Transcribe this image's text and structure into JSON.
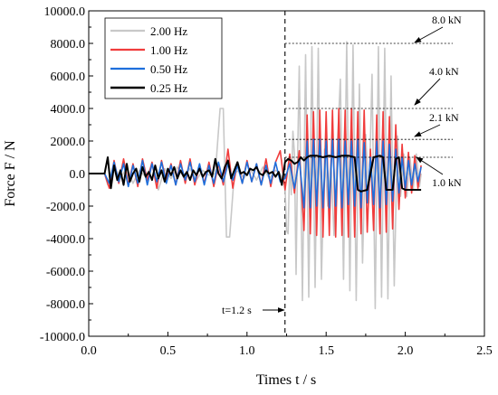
{
  "chart_data": {
    "type": "line",
    "xlabel": "Times t / s",
    "ylabel": "Force F / N",
    "xlim": [
      0,
      2.5
    ],
    "ylim": [
      -10000,
      10000
    ],
    "xticks": [
      0,
      0.5,
      1.0,
      1.5,
      2.0,
      2.5
    ],
    "xtick_labels": [
      "0.0",
      "0.5",
      "1.0",
      "1.5",
      "2.0",
      "2.5"
    ],
    "yticks": [
      10000,
      8000,
      6000,
      4000,
      2000,
      0,
      -2000,
      -4000,
      -6000,
      -8000,
      -10000
    ],
    "ytick_labels": [
      "10000.0",
      "8000.0",
      "6000.0",
      "4000.0",
      "2000.0",
      "0.0",
      "-2000.0",
      "-4000.0",
      "-6000.0",
      "-8000.0",
      "-10000.0"
    ],
    "legend_position": "top-left",
    "series": [
      {
        "name": "2.00 Hz",
        "color": "#c8c8c8",
        "x": [
          0.0,
          0.1,
          0.12,
          0.16,
          0.2,
          0.24,
          0.28,
          0.32,
          0.36,
          0.4,
          0.44,
          0.48,
          0.52,
          0.56,
          0.6,
          0.64,
          0.68,
          0.72,
          0.76,
          0.8,
          0.83,
          0.85,
          0.87,
          0.89,
          0.92,
          0.95,
          0.98,
          1.02,
          1.06,
          1.1,
          1.14,
          1.18,
          1.2,
          1.22,
          1.24,
          1.25,
          1.26,
          1.27,
          1.28,
          1.29,
          1.3,
          1.31,
          1.32,
          1.33,
          1.35,
          1.37,
          1.39,
          1.41,
          1.43,
          1.45,
          1.47,
          1.49,
          1.51,
          1.53,
          1.55,
          1.57,
          1.59,
          1.61,
          1.63,
          1.65,
          1.67,
          1.69,
          1.71,
          1.73,
          1.75,
          1.77,
          1.79,
          1.81,
          1.83,
          1.85,
          1.87,
          1.89,
          1.91,
          1.93,
          1.95,
          1.97,
          1.99,
          2.01,
          2.03,
          2.05,
          2.07,
          2.09,
          2.1
        ],
        "y": [
          0,
          0,
          -700,
          400,
          -300,
          350,
          -600,
          200,
          -200,
          500,
          -1000,
          300,
          -300,
          400,
          -200,
          300,
          -400,
          200,
          -100,
          0,
          4000,
          4000,
          -3900,
          -3900,
          0,
          200,
          -300,
          300,
          -400,
          400,
          -300,
          200,
          100,
          -200,
          -800,
          -3500,
          -3700,
          900,
          -1300,
          2600,
          1200,
          -6200,
          1000,
          6600,
          -7800,
          7300,
          -7600,
          7800,
          -7000,
          7700,
          -6500,
          1500,
          -2000,
          800,
          -3800,
          1500,
          5800,
          -6500,
          8100,
          -7200,
          7900,
          -7800,
          5500,
          -5500,
          2400,
          -1800,
          6100,
          -8300,
          7800,
          -7600,
          7700,
          -7700,
          6000,
          -6900,
          2300,
          -1400,
          1200,
          -1400,
          1000,
          -1000,
          1200,
          -800,
          0
        ]
      },
      {
        "name": "1.00 Hz",
        "color": "#f03c3c",
        "x": [
          0.0,
          0.1,
          0.13,
          0.16,
          0.19,
          0.22,
          0.25,
          0.28,
          0.31,
          0.34,
          0.37,
          0.4,
          0.43,
          0.46,
          0.49,
          0.52,
          0.55,
          0.58,
          0.61,
          0.64,
          0.67,
          0.7,
          0.73,
          0.76,
          0.79,
          0.82,
          0.85,
          0.88,
          0.91,
          0.94,
          0.97,
          1.0,
          1.03,
          1.06,
          1.09,
          1.12,
          1.15,
          1.18,
          1.21,
          1.24,
          1.27,
          1.3,
          1.33,
          1.36,
          1.38,
          1.4,
          1.42,
          1.44,
          1.46,
          1.48,
          1.5,
          1.52,
          1.54,
          1.56,
          1.58,
          1.6,
          1.62,
          1.64,
          1.66,
          1.68,
          1.7,
          1.72,
          1.74,
          1.76,
          1.78,
          1.8,
          1.82,
          1.84,
          1.86,
          1.88,
          1.9,
          1.92,
          1.94,
          1.96,
          1.98,
          2.0,
          2.02,
          2.04,
          2.06,
          2.08,
          2.1
        ],
        "y": [
          0,
          0,
          -900,
          800,
          -600,
          900,
          -700,
          600,
          -800,
          900,
          -400,
          700,
          -900,
          800,
          -500,
          600,
          -700,
          800,
          -600,
          900,
          -700,
          500,
          -600,
          700,
          -800,
          600,
          -700,
          1500,
          -900,
          700,
          -600,
          800,
          -500,
          600,
          -700,
          900,
          -800,
          700,
          1400,
          -1000,
          1200,
          -1200,
          1400,
          -3500,
          3600,
          -3700,
          3800,
          -3800,
          3900,
          -3900,
          3800,
          -3800,
          3900,
          -3900,
          4000,
          -3800,
          3900,
          -3900,
          4000,
          -3900,
          3800,
          -3700,
          3900,
          -3600,
          1500,
          -3500,
          3600,
          -3700,
          3800,
          -3600,
          3500,
          -3400,
          3000,
          -2200,
          1800,
          -1500,
          1300,
          -1200,
          1100,
          -900,
          500
        ]
      },
      {
        "name": "0.50 Hz",
        "color": "#1e6fdc",
        "x": [
          0.0,
          0.1,
          0.13,
          0.16,
          0.19,
          0.22,
          0.25,
          0.28,
          0.31,
          0.34,
          0.37,
          0.4,
          0.43,
          0.46,
          0.49,
          0.52,
          0.55,
          0.58,
          0.61,
          0.64,
          0.67,
          0.7,
          0.73,
          0.76,
          0.79,
          0.82,
          0.85,
          0.88,
          0.91,
          0.94,
          0.97,
          1.0,
          1.03,
          1.06,
          1.09,
          1.12,
          1.15,
          1.18,
          1.21,
          1.24,
          1.27,
          1.3,
          1.33,
          1.36,
          1.38,
          1.4,
          1.42,
          1.44,
          1.46,
          1.48,
          1.5,
          1.52,
          1.54,
          1.56,
          1.58,
          1.6,
          1.62,
          1.64,
          1.66,
          1.68,
          1.7,
          1.72,
          1.74,
          1.76,
          1.78,
          1.8,
          1.82,
          1.84,
          1.86,
          1.88,
          1.9,
          1.92,
          1.94,
          1.96,
          1.98,
          2.0,
          2.02,
          2.04,
          2.06,
          2.08,
          2.1
        ],
        "y": [
          0,
          0,
          -600,
          700,
          -500,
          600,
          -800,
          500,
          -600,
          800,
          -700,
          600,
          -500,
          700,
          -600,
          500,
          -700,
          600,
          -400,
          700,
          -500,
          600,
          -700,
          500,
          -600,
          700,
          -500,
          600,
          -400,
          500,
          -600,
          700,
          -500,
          600,
          -700,
          500,
          -600,
          700,
          -500,
          -300,
          600,
          -900,
          900,
          -2100,
          2000,
          -2100,
          2100,
          -2000,
          2100,
          -2100,
          2000,
          -2100,
          2100,
          -2000,
          2100,
          -2100,
          2000,
          -1900,
          2000,
          -2000,
          2100,
          -2100,
          1900,
          -1800,
          1000,
          -1900,
          2000,
          -2100,
          2000,
          -1900,
          1800,
          -1700,
          1500,
          -1200,
          1000,
          -900,
          800,
          -700,
          600,
          -500,
          400
        ]
      },
      {
        "name": "0.25 Hz",
        "color": "#000000",
        "x": [
          0.0,
          0.1,
          0.12,
          0.14,
          0.16,
          0.18,
          0.2,
          0.22,
          0.24,
          0.26,
          0.28,
          0.3,
          0.32,
          0.34,
          0.36,
          0.38,
          0.4,
          0.42,
          0.44,
          0.46,
          0.48,
          0.5,
          0.52,
          0.54,
          0.56,
          0.58,
          0.6,
          0.62,
          0.64,
          0.66,
          0.68,
          0.7,
          0.72,
          0.74,
          0.76,
          0.78,
          0.8,
          0.82,
          0.84,
          0.86,
          0.88,
          0.9,
          0.92,
          0.94,
          0.96,
          0.98,
          1.0,
          1.02,
          1.04,
          1.06,
          1.08,
          1.1,
          1.12,
          1.14,
          1.16,
          1.18,
          1.2,
          1.22,
          1.24,
          1.26,
          1.28,
          1.3,
          1.32,
          1.34,
          1.36,
          1.38,
          1.4,
          1.44,
          1.48,
          1.52,
          1.56,
          1.6,
          1.64,
          1.68,
          1.7,
          1.72,
          1.76,
          1.8,
          1.84,
          1.86,
          1.88,
          1.9,
          1.92,
          1.94,
          1.96,
          1.98,
          2.0,
          2.04,
          2.08,
          2.1
        ],
        "y": [
          0,
          0,
          1000,
          -900,
          500,
          -400,
          200,
          -700,
          600,
          -500,
          0,
          300,
          -500,
          400,
          -200,
          100,
          -400,
          500,
          -300,
          200,
          -500,
          300,
          -100,
          400,
          -300,
          200,
          -200,
          100,
          -400,
          200,
          -100,
          300,
          -200,
          100,
          200,
          -200,
          900,
          0,
          -300,
          400,
          800,
          -300,
          200,
          700,
          0,
          100,
          -100,
          300,
          200,
          400,
          0,
          -100,
          200,
          0,
          100,
          -200,
          100,
          -700,
          700,
          900,
          800,
          600,
          700,
          1000,
          800,
          1000,
          1100,
          1100,
          1000,
          1100,
          1000,
          1100,
          1100,
          1000,
          -1000,
          -1100,
          -1000,
          1000,
          1100,
          1000,
          -1000,
          -1000,
          -1000,
          900,
          1000,
          -900,
          -1000,
          -1000,
          -1000,
          -1000
        ]
      }
    ],
    "marker_line": {
      "x": 1.24,
      "label": "t=1.2 s"
    },
    "reference_lines": [
      {
        "y": 8000,
        "label": "8.0 kN"
      },
      {
        "y": 4000,
        "label": "4.0 kN"
      },
      {
        "y": 2100,
        "label": "2.1 kN"
      },
      {
        "y": 1000,
        "label": "1.0 kN"
      }
    ]
  }
}
